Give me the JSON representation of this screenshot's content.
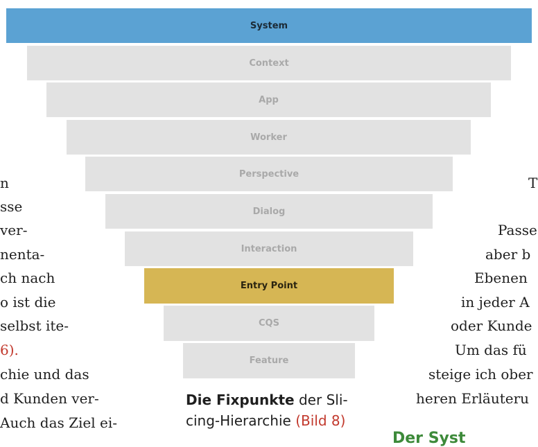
{
  "layers": [
    {
      "label": "System",
      "highlight": "blue"
    },
    {
      "label": "Context"
    },
    {
      "label": "App"
    },
    {
      "label": "Worker"
    },
    {
      "label": "Perspective"
    },
    {
      "label": "Dialog"
    },
    {
      "label": "Interaction"
    },
    {
      "label": "Entry Point",
      "highlight": "gold"
    },
    {
      "label": "CQS"
    },
    {
      "label": "Feature"
    }
  ],
  "colors": {
    "system": "#5ba2d3",
    "entry_point": "#d6b654",
    "layer": "#e2e2e2",
    "reference": "#c2392d",
    "heading": "#3d8a3a"
  },
  "left_column": [
    "n",
    "sse",
    " ver-",
    "nenta-",
    "ch nach",
    "o  ist  die",
    " selbst ite-",
    "6).",
    "chie  und  das",
    "d  Kunden  ver-",
    " Auch das Ziel ei-"
  ],
  "right_column": [
    "T",
    "Passe",
    "aber  b",
    "Ebenen",
    "in jeder A",
    "oder Kunde",
    "Um  das  fü",
    "steige ich ober",
    "heren Erläuteru"
  ],
  "caption": {
    "bold": "Die Fixpunkte",
    "text1": " der Sli-",
    "text2": "cing-Hierarchie ",
    "ref": "(Bild 8)"
  },
  "partial_heading": "Der Syst"
}
